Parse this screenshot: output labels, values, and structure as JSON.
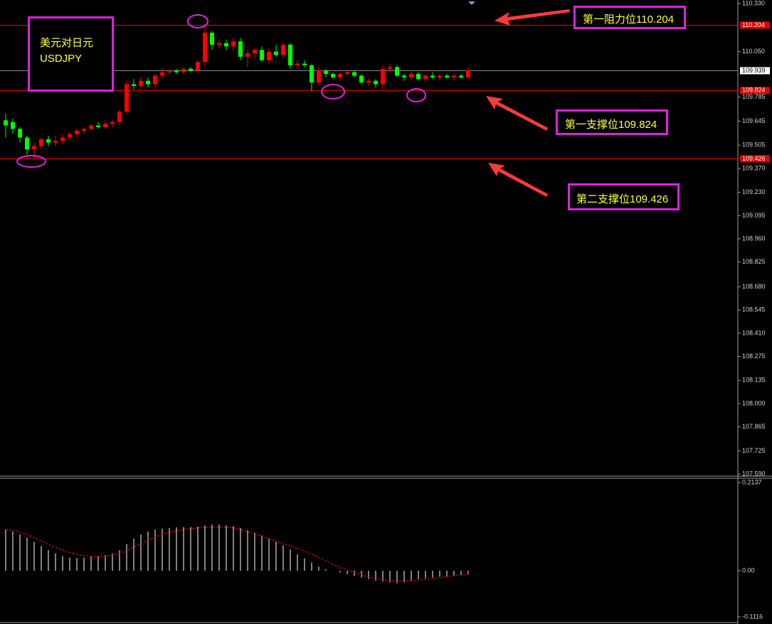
{
  "chart_data": [
    {
      "type": "candlestick",
      "categories": [
        null,
        null,
        null,
        null,
        null,
        null,
        null,
        null,
        null,
        null,
        null,
        null,
        null,
        null,
        null,
        null,
        null,
        null,
        null,
        null,
        null,
        null,
        null,
        null,
        null,
        null,
        null,
        null,
        null,
        null,
        null,
        null,
        null,
        null,
        null,
        null,
        null,
        null,
        null,
        null,
        null,
        null,
        null,
        null,
        null,
        null,
        null,
        null,
        null,
        null,
        null,
        null,
        null,
        null,
        null,
        null,
        null,
        null,
        null,
        null,
        null,
        null,
        null,
        null,
        null,
        null
      ],
      "open": [
        109.65,
        109.64,
        109.6,
        109.55,
        109.48,
        109.5,
        109.54,
        109.52,
        109.53,
        109.55,
        109.57,
        109.59,
        109.6,
        109.62,
        109.61,
        109.63,
        109.64,
        109.7,
        109.86,
        109.85,
        109.88,
        109.86,
        109.91,
        109.93,
        109.94,
        109.93,
        109.95,
        109.94,
        109.99,
        110.16,
        110.09,
        110.1,
        110.08,
        110.11,
        110.02,
        110.04,
        110.06,
        110.0,
        110.05,
        110.03,
        110.09,
        109.97,
        109.98,
        109.97,
        109.87,
        109.94,
        109.92,
        109.9,
        109.92,
        109.93,
        109.91,
        109.87,
        109.88,
        109.86,
        109.95,
        109.96,
        109.91,
        109.9,
        109.92,
        109.89,
        109.91,
        109.9,
        109.91,
        109.9,
        109.91,
        109.9
      ],
      "high": [
        109.69,
        109.66,
        109.61,
        109.56,
        109.52,
        109.55,
        109.56,
        109.56,
        109.57,
        109.58,
        109.6,
        109.61,
        109.63,
        109.64,
        109.65,
        109.65,
        109.71,
        109.88,
        109.89,
        109.9,
        109.9,
        109.92,
        109.95,
        109.95,
        109.95,
        109.96,
        109.96,
        110.0,
        110.21,
        110.17,
        110.12,
        110.12,
        110.13,
        110.13,
        110.06,
        110.07,
        110.08,
        110.07,
        110.09,
        110.1,
        110.1,
        110.0,
        110.0,
        109.98,
        109.96,
        109.95,
        109.93,
        109.93,
        109.94,
        109.94,
        109.92,
        109.89,
        109.89,
        109.97,
        109.98,
        109.97,
        109.92,
        109.93,
        109.93,
        109.92,
        109.93,
        109.92,
        109.92,
        109.92,
        109.92,
        109.96
      ],
      "low": [
        109.55,
        109.57,
        109.52,
        109.45,
        109.43,
        109.48,
        109.5,
        109.5,
        109.51,
        109.53,
        109.55,
        109.57,
        109.59,
        109.6,
        109.6,
        109.61,
        109.62,
        109.69,
        109.83,
        109.83,
        109.84,
        109.84,
        109.89,
        109.91,
        109.92,
        109.92,
        109.93,
        109.93,
        109.97,
        110.06,
        110.07,
        110.06,
        110.05,
        110.0,
        109.96,
        110.01,
        109.99,
        109.98,
        110.02,
        110.01,
        109.95,
        109.95,
        109.96,
        109.82,
        109.86,
        109.9,
        109.89,
        109.88,
        109.91,
        109.9,
        109.86,
        109.85,
        109.84,
        109.83,
        109.93,
        109.9,
        109.88,
        109.88,
        109.88,
        109.87,
        109.89,
        109.88,
        109.89,
        109.88,
        109.89,
        109.89
      ],
      "close": [
        109.62,
        109.6,
        109.55,
        109.48,
        109.5,
        109.54,
        109.52,
        109.53,
        109.55,
        109.57,
        109.59,
        109.6,
        109.62,
        109.61,
        109.63,
        109.64,
        109.7,
        109.86,
        109.85,
        109.88,
        109.86,
        109.91,
        109.93,
        109.94,
        109.93,
        109.95,
        109.94,
        109.99,
        110.16,
        110.09,
        110.1,
        110.08,
        110.11,
        110.02,
        110.04,
        110.06,
        110.0,
        110.05,
        110.03,
        110.09,
        109.97,
        109.98,
        109.97,
        109.87,
        109.94,
        109.92,
        109.9,
        109.92,
        109.93,
        109.91,
        109.87,
        109.88,
        109.86,
        109.95,
        109.96,
        109.91,
        109.9,
        109.92,
        109.89,
        109.91,
        109.9,
        109.91,
        109.9,
        109.91,
        109.9,
        109.94
      ],
      "up_color": "#ff0000",
      "down_color": "#00ff00",
      "ylim": [
        107.59,
        110.33
      ],
      "yticks": [
        {
          "value": 110.33,
          "label": "110.330"
        },
        {
          "value": 110.05,
          "label": "110.050"
        },
        109.785,
        109.645,
        109.505,
        {
          "value": 109.37,
          "label": "109.370"
        },
        {
          "value": 109.23,
          "label": "109.230"
        },
        109.095,
        {
          "value": 108.96,
          "label": "108.960"
        },
        108.825,
        {
          "value": 108.68,
          "label": "108.680"
        },
        108.545,
        {
          "value": 108.41,
          "label": "108.410"
        },
        108.275,
        108.135,
        {
          "value": 108.0,
          "label": "108.000"
        },
        107.865,
        107.725,
        {
          "value": 107.59,
          "label": "107.590"
        }
      ],
      "levels": [
        {
          "value": 110.204,
          "color": "#ff0000"
        },
        {
          "value": 109.939,
          "color": "#8c8c8c"
        },
        {
          "value": 109.824,
          "color": "#ff0000"
        },
        {
          "value": 109.426,
          "color": "#ff0000"
        }
      ],
      "annotations": {
        "pair_cn": "美元对日元",
        "pair": "USDJPY",
        "resistance_1": "第一阻力位110.204",
        "support_1": "第一支撑位109.824",
        "support_2": "第二支撑位109.426"
      }
    },
    {
      "type": "bar",
      "series": [
        {
          "type": "bar",
          "color": "#ffffff",
          "values": [
            0.1,
            0.095,
            0.088,
            0.08,
            0.07,
            0.06,
            0.05,
            0.042,
            0.036,
            0.032,
            0.031,
            0.032,
            0.034,
            0.036,
            0.038,
            0.042,
            0.05,
            0.065,
            0.078,
            0.088,
            0.095,
            0.1,
            0.102,
            0.104,
            0.105,
            0.106,
            0.106,
            0.107,
            0.11,
            0.112,
            0.112,
            0.11,
            0.108,
            0.104,
            0.098,
            0.092,
            0.086,
            0.078,
            0.07,
            0.062,
            0.052,
            0.04,
            0.03,
            0.02,
            0.01,
            0.004,
            0.0,
            -0.004,
            -0.008,
            -0.012,
            -0.016,
            -0.02,
            -0.024,
            -0.026,
            -0.028,
            -0.03,
            -0.028,
            -0.024,
            -0.02,
            -0.018,
            -0.016,
            -0.014,
            -0.014,
            -0.012,
            -0.01,
            -0.008
          ]
        },
        {
          "type": "line",
          "color": "#ff0000",
          "values": [
            0.1,
            0.098,
            0.094,
            0.088,
            0.08,
            0.072,
            0.064,
            0.056,
            0.05,
            0.045,
            0.04,
            0.037,
            0.035,
            0.035,
            0.036,
            0.038,
            0.042,
            0.05,
            0.058,
            0.066,
            0.074,
            0.082,
            0.088,
            0.093,
            0.097,
            0.1,
            0.102,
            0.104,
            0.105,
            0.106,
            0.106,
            0.106,
            0.104,
            0.1,
            0.095,
            0.09,
            0.084,
            0.078,
            0.072,
            0.066,
            0.06,
            0.054,
            0.048,
            0.04,
            0.032,
            0.024,
            0.016,
            0.008,
            0.002,
            -0.004,
            -0.01,
            -0.015,
            -0.019,
            -0.022,
            -0.024,
            -0.025,
            -0.025,
            -0.024,
            -0.022,
            -0.02,
            -0.018,
            -0.016,
            -0.014,
            -0.012,
            -0.01,
            -0.008
          ]
        }
      ],
      "ylim": [
        -0.1116,
        0.2137
      ],
      "yticks": [
        0.2137,
        {
          "value": 0,
          "label": "0.00"
        },
        -0.1116
      ]
    }
  ]
}
